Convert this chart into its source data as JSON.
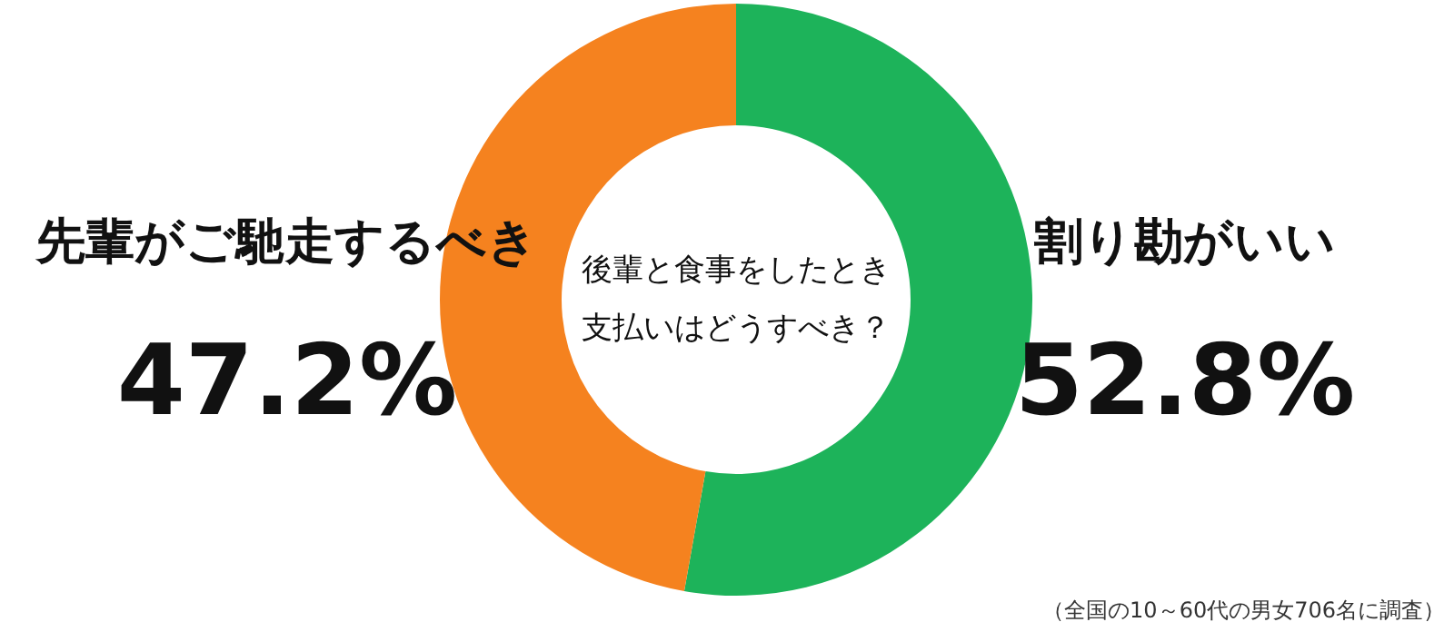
{
  "chart_data": {
    "type": "donut",
    "title": "後輩と食事をしたとき支払いはどうすべき？",
    "categories": [
      "割り勘がいい",
      "先輩がご馳走するべき"
    ],
    "values": [
      52.8,
      47.2
    ],
    "colors": [
      "#1db35a",
      "#f5821f"
    ],
    "value_labels": [
      "52.8%",
      "47.2%"
    ],
    "annotations": [
      "（全国の10～60代の男女706名に調査）"
    ]
  }
}
